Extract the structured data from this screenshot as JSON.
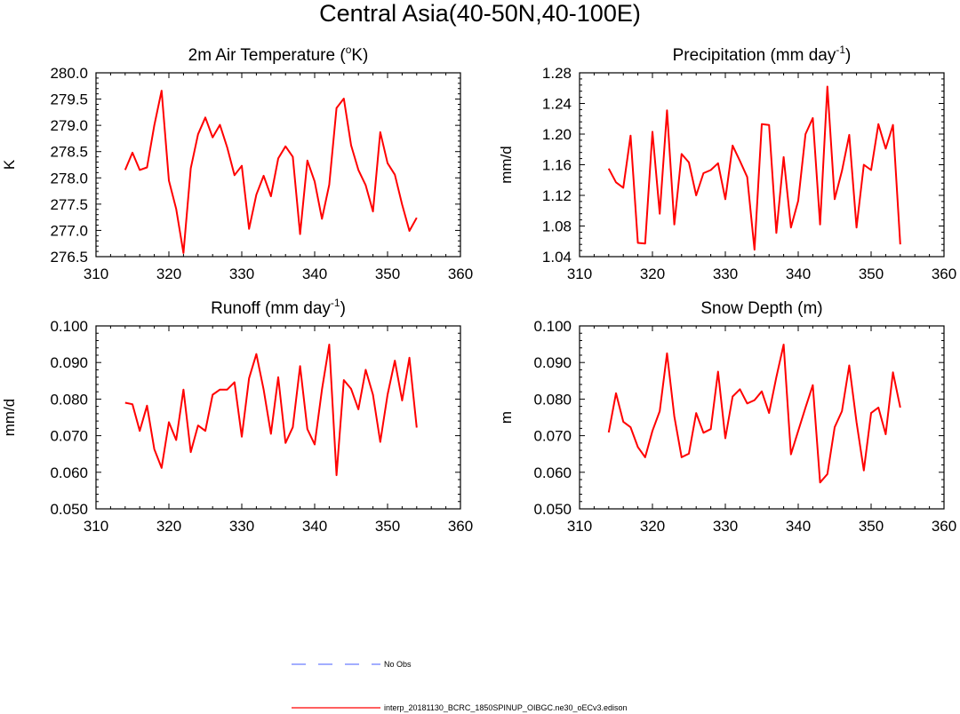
{
  "figure": {
    "title": "Central Asia(40-50N,40-100E)"
  },
  "colors": {
    "series": "#ff0000",
    "obs": "#6a7dff",
    "axis": "#000000"
  },
  "chart_data": [
    {
      "type": "line",
      "title": "2m Air Temperature (",
      "title_sup": "o",
      "title_tail": "K)",
      "xlabel": "",
      "ylabel": "K",
      "xlim": [
        310,
        360
      ],
      "ylim": [
        276.5,
        280.0
      ],
      "xticks": [
        310,
        320,
        330,
        340,
        350,
        360
      ],
      "xtick_labels": [
        "310",
        "320",
        "330",
        "340",
        "350",
        "360"
      ],
      "yticks": [
        276.5,
        277.0,
        277.5,
        278.0,
        278.5,
        279.0,
        279.5,
        280.0
      ],
      "ytick_labels": [
        "276.5",
        "277.0",
        "277.5",
        "278.0",
        "278.5",
        "279.0",
        "279.5",
        "280.0"
      ],
      "series": [
        {
          "name": "interp_20181130_BCRC_1850SPINUP_OIBGC.ne30_oECv3.edison",
          "x": [
            314,
            315,
            316,
            317,
            318,
            319,
            320,
            321,
            322,
            323,
            324,
            325,
            326,
            327,
            328,
            329,
            330,
            331,
            332,
            333,
            334,
            335,
            336,
            337,
            338,
            339,
            340,
            341,
            342,
            343,
            344,
            345,
            346,
            347,
            348,
            349,
            350,
            351,
            352,
            353,
            354
          ],
          "y": [
            278.15,
            278.48,
            278.15,
            278.2,
            279.0,
            279.66,
            277.95,
            277.41,
            276.57,
            278.18,
            278.83,
            279.15,
            278.77,
            279.01,
            278.58,
            278.05,
            278.23,
            277.03,
            277.68,
            278.04,
            277.65,
            278.37,
            278.6,
            278.4,
            276.93,
            278.33,
            277.93,
            277.22,
            277.87,
            279.33,
            279.51,
            278.62,
            278.15,
            277.86,
            277.36,
            278.87,
            278.28,
            278.06,
            277.49,
            276.99,
            277.24
          ]
        }
      ]
    },
    {
      "type": "line",
      "title": "Precipitation (mm day",
      "title_sup": "-1",
      "title_tail": ")",
      "xlabel": "",
      "ylabel": "mm/d",
      "xlim": [
        310,
        360
      ],
      "ylim": [
        1.04,
        1.28
      ],
      "xticks": [
        310,
        320,
        330,
        340,
        350,
        360
      ],
      "xtick_labels": [
        "310",
        "320",
        "330",
        "340",
        "350",
        "360"
      ],
      "yticks": [
        1.04,
        1.08,
        1.12,
        1.16,
        1.2,
        1.24,
        1.28
      ],
      "ytick_labels": [
        "1.04",
        "1.08",
        "1.12",
        "1.16",
        "1.20",
        "1.24",
        "1.28"
      ],
      "series": [
        {
          "name": "interp_20181130_BCRC_1850SPINUP_OIBGC.ne30_oECv3.edison",
          "x": [
            314,
            315,
            316,
            317,
            318,
            319,
            320,
            321,
            322,
            323,
            324,
            325,
            326,
            327,
            328,
            329,
            330,
            331,
            332,
            333,
            334,
            335,
            336,
            337,
            338,
            339,
            340,
            341,
            342,
            343,
            344,
            345,
            346,
            347,
            348,
            349,
            350,
            351,
            352,
            353,
            354
          ],
          "y": [
            1.155,
            1.137,
            1.13,
            1.198,
            1.058,
            1.057,
            1.203,
            1.096,
            1.231,
            1.082,
            1.174,
            1.163,
            1.12,
            1.149,
            1.153,
            1.162,
            1.115,
            1.185,
            1.165,
            1.144,
            1.049,
            1.213,
            1.212,
            1.071,
            1.17,
            1.078,
            1.113,
            1.2,
            1.221,
            1.082,
            1.262,
            1.115,
            1.152,
            1.199,
            1.078,
            1.16,
            1.153,
            1.213,
            1.181,
            1.212,
            1.056
          ]
        }
      ]
    },
    {
      "type": "line",
      "title": "Runoff (mm day",
      "title_sup": "-1",
      "title_tail": ")",
      "xlabel": "",
      "ylabel": "mm/d",
      "xlim": [
        310,
        360
      ],
      "ylim": [
        0.05,
        0.1
      ],
      "xticks": [
        310,
        320,
        330,
        340,
        350,
        360
      ],
      "xtick_labels": [
        "310",
        "320",
        "330",
        "340",
        "350",
        "360"
      ],
      "yticks": [
        0.05,
        0.06,
        0.07,
        0.08,
        0.09,
        0.1
      ],
      "ytick_labels": [
        "0.050",
        "0.060",
        "0.070",
        "0.080",
        "0.090",
        "0.100"
      ],
      "series": [
        {
          "name": "interp_20181130_BCRC_1850SPINUP_OIBGC.ne30_oECv3.edison",
          "x": [
            314,
            315,
            316,
            317,
            318,
            319,
            320,
            321,
            322,
            323,
            324,
            325,
            326,
            327,
            328,
            329,
            330,
            331,
            332,
            333,
            334,
            335,
            336,
            337,
            338,
            339,
            340,
            341,
            342,
            343,
            344,
            345,
            346,
            347,
            348,
            349,
            350,
            351,
            352,
            353,
            354
          ],
          "y": [
            0.079,
            0.0786,
            0.0713,
            0.0782,
            0.0663,
            0.0612,
            0.0737,
            0.0688,
            0.0826,
            0.0655,
            0.0728,
            0.0713,
            0.0812,
            0.0826,
            0.0826,
            0.0846,
            0.0697,
            0.0857,
            0.0923,
            0.0826,
            0.0705,
            0.086,
            0.068,
            0.0723,
            0.089,
            0.0718,
            0.0676,
            0.0826,
            0.0949,
            0.0592,
            0.0852,
            0.0828,
            0.0772,
            0.088,
            0.0812,
            0.0683,
            0.0812,
            0.0905,
            0.0796,
            0.0913,
            0.0722
          ]
        }
      ]
    },
    {
      "type": "line",
      "title": "Snow Depth (m)",
      "title_sup": "",
      "title_tail": "",
      "xlabel": "",
      "ylabel": "m",
      "xlim": [
        310,
        360
      ],
      "ylim": [
        0.05,
        0.1
      ],
      "xticks": [
        310,
        320,
        330,
        340,
        350,
        360
      ],
      "xtick_labels": [
        "310",
        "320",
        "330",
        "340",
        "350",
        "360"
      ],
      "yticks": [
        0.05,
        0.06,
        0.07,
        0.08,
        0.09,
        0.1
      ],
      "ytick_labels": [
        "0.050",
        "0.060",
        "0.070",
        "0.080",
        "0.090",
        "0.100"
      ],
      "series": [
        {
          "name": "interp_20181130_BCRC_1850SPINUP_OIBGC.ne30_oECv3.edison",
          "x": [
            314,
            315,
            316,
            317,
            318,
            319,
            320,
            321,
            322,
            323,
            324,
            325,
            326,
            327,
            328,
            329,
            330,
            331,
            332,
            333,
            334,
            335,
            336,
            337,
            338,
            339,
            340,
            341,
            342,
            343,
            344,
            345,
            346,
            347,
            348,
            349,
            350,
            351,
            352,
            353,
            354
          ],
          "y": [
            0.0709,
            0.0816,
            0.0738,
            0.0723,
            0.0669,
            0.0641,
            0.0713,
            0.0767,
            0.0925,
            0.0753,
            0.0641,
            0.0651,
            0.0762,
            0.0708,
            0.0718,
            0.0875,
            0.0693,
            0.0807,
            0.0827,
            0.0788,
            0.0797,
            0.0821,
            0.0762,
            0.086,
            0.0949,
            0.0649,
            0.0713,
            0.0777,
            0.0838,
            0.0572,
            0.0595,
            0.0723,
            0.0767,
            0.0892,
            0.0737,
            0.0605,
            0.0762,
            0.0777,
            0.0704,
            0.0873,
            0.0777
          ]
        }
      ]
    }
  ],
  "legend": {
    "obs_label": "No Obs",
    "model_label": "interp_20181130_BCRC_1850SPINUP_OIBGC.ne30_oECv3.edison"
  }
}
